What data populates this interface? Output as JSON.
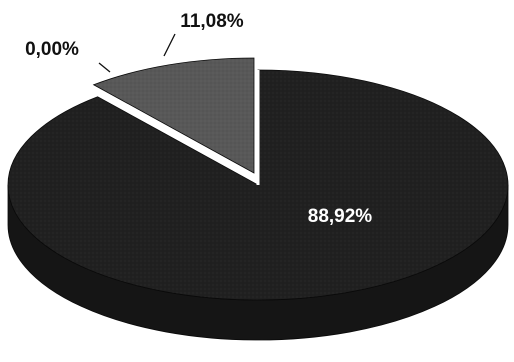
{
  "chart_data": {
    "type": "pie",
    "style": "3d",
    "slices": [
      {
        "label": "88,92%",
        "value": 88.92,
        "color": "#202020",
        "side_color": "#151515"
      },
      {
        "label": "11,08%",
        "value": 11.08,
        "color": "#585858",
        "side_color": "#3e3e3e",
        "exploded": true
      },
      {
        "label": "0,00%",
        "value": 0.0,
        "color": "#888888",
        "side_color": "#666666"
      }
    ]
  }
}
